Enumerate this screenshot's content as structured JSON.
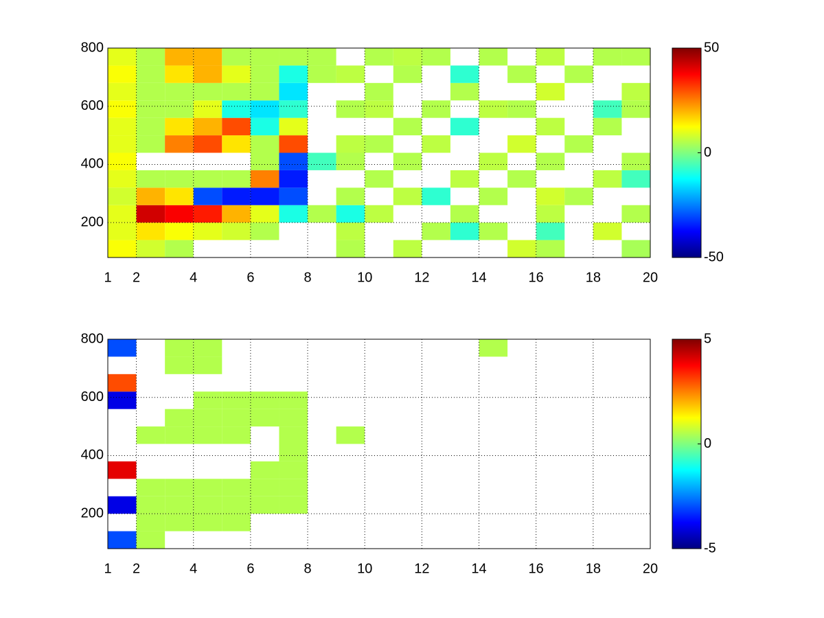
{
  "chart_data": [
    {
      "type": "heatmap",
      "colormap": "jet",
      "grid": true,
      "x": [
        1.5,
        2.5,
        3.5,
        4.5,
        5.5,
        6.5,
        7.5,
        8.5,
        9.5,
        10.5,
        11.5,
        12.5,
        13.5,
        14.5,
        15.5,
        16.5,
        17.5,
        18.5,
        19.5
      ],
      "y": [
        110,
        170,
        230,
        290,
        350,
        410,
        470,
        530,
        590,
        650,
        710,
        770
      ],
      "values": [
        [
          12,
          8,
          5,
          null,
          null,
          null,
          null,
          null,
          5,
          null,
          6,
          null,
          null,
          null,
          8,
          5,
          null,
          null,
          4
        ],
        [
          10,
          15,
          12,
          10,
          8,
          5,
          null,
          null,
          6,
          null,
          null,
          5,
          -8,
          5,
          null,
          -6,
          null,
          8,
          null
        ],
        [
          10,
          42,
          38,
          35,
          20,
          10,
          -10,
          5,
          -10,
          6,
          null,
          null,
          5,
          null,
          null,
          6,
          null,
          null,
          5
        ],
        [
          8,
          20,
          15,
          -30,
          -35,
          -35,
          -30,
          null,
          5,
          null,
          6,
          -8,
          null,
          5,
          null,
          8,
          5,
          null,
          null
        ],
        [
          10,
          5,
          5,
          5,
          5,
          25,
          -35,
          null,
          null,
          5,
          null,
          null,
          6,
          null,
          5,
          null,
          null,
          6,
          -6
        ],
        [
          12,
          null,
          null,
          null,
          null,
          5,
          -30,
          -6,
          5,
          null,
          5,
          null,
          null,
          6,
          null,
          5,
          null,
          null,
          5
        ],
        [
          10,
          5,
          25,
          30,
          15,
          5,
          30,
          null,
          6,
          5,
          null,
          6,
          null,
          null,
          8,
          null,
          5,
          null,
          null
        ],
        [
          10,
          5,
          15,
          20,
          30,
          -10,
          10,
          null,
          null,
          null,
          5,
          null,
          -8,
          null,
          null,
          6,
          null,
          5,
          null
        ],
        [
          12,
          5,
          5,
          10,
          -10,
          -15,
          -8,
          null,
          5,
          6,
          null,
          5,
          null,
          6,
          5,
          null,
          null,
          -6,
          5
        ],
        [
          10,
          5,
          5,
          5,
          5,
          5,
          -15,
          null,
          null,
          5,
          null,
          null,
          5,
          null,
          null,
          8,
          null,
          null,
          6
        ],
        [
          12,
          5,
          15,
          20,
          10,
          5,
          -10,
          5,
          6,
          null,
          5,
          null,
          -8,
          null,
          5,
          null,
          5,
          null,
          null
        ],
        [
          10,
          5,
          20,
          20,
          5,
          5,
          5,
          5,
          null,
          5,
          6,
          5,
          null,
          5,
          null,
          6,
          null,
          5,
          5
        ]
      ],
      "xlim": [
        1,
        20
      ],
      "ylim": [
        80,
        800
      ],
      "xticks": [
        1,
        2,
        4,
        6,
        8,
        10,
        12,
        14,
        16,
        18,
        20
      ],
      "yticks": [
        200,
        400,
        600,
        800
      ],
      "clim": [
        -50,
        50
      ],
      "cticks": [
        -50,
        0,
        50
      ]
    },
    {
      "type": "heatmap",
      "colormap": "jet",
      "grid": true,
      "x": [
        1.5,
        2.5,
        3.5,
        4.5,
        5.5,
        6.5,
        7.5,
        8.5,
        9.5,
        10.5,
        11.5,
        12.5,
        13.5,
        14.5,
        15.5,
        16.5,
        17.5,
        18.5,
        19.5
      ],
      "y": [
        110,
        170,
        230,
        290,
        350,
        410,
        470,
        530,
        590,
        650,
        710,
        770
      ],
      "values": [
        [
          -3,
          0.5,
          null,
          null,
          null,
          null,
          null,
          null,
          null,
          null,
          null,
          null,
          null,
          null,
          null,
          null,
          null,
          null,
          null
        ],
        [
          null,
          0.5,
          0.5,
          0.5,
          0.5,
          null,
          null,
          null,
          null,
          null,
          null,
          null,
          null,
          null,
          null,
          null,
          null,
          null,
          null
        ],
        [
          -4,
          0.5,
          0.5,
          0.5,
          0.5,
          0.5,
          0.5,
          null,
          null,
          null,
          null,
          null,
          null,
          null,
          null,
          null,
          null,
          null,
          null
        ],
        [
          null,
          0.5,
          0.5,
          0.5,
          0.5,
          0.5,
          0.5,
          null,
          null,
          null,
          null,
          null,
          null,
          null,
          null,
          null,
          null,
          null,
          null
        ],
        [
          4,
          null,
          null,
          null,
          null,
          0.5,
          0.5,
          null,
          null,
          null,
          null,
          null,
          null,
          null,
          null,
          null,
          null,
          null,
          null
        ],
        [
          null,
          null,
          null,
          null,
          null,
          null,
          0.5,
          null,
          null,
          null,
          null,
          null,
          null,
          null,
          null,
          null,
          null,
          null,
          null
        ],
        [
          null,
          0.5,
          0.5,
          0.5,
          0.5,
          null,
          0.5,
          null,
          0.5,
          null,
          null,
          null,
          null,
          null,
          null,
          null,
          null,
          null,
          null
        ],
        [
          null,
          null,
          0.5,
          0.5,
          0.5,
          0.5,
          0.5,
          null,
          null,
          null,
          null,
          null,
          null,
          null,
          null,
          null,
          null,
          null,
          null
        ],
        [
          -4,
          null,
          null,
          0.5,
          0.5,
          0.5,
          0.5,
          null,
          null,
          null,
          null,
          null,
          null,
          null,
          null,
          null,
          null,
          null,
          null
        ],
        [
          3,
          null,
          null,
          null,
          null,
          null,
          null,
          null,
          null,
          null,
          null,
          null,
          null,
          null,
          null,
          null,
          null,
          null,
          null
        ],
        [
          null,
          null,
          0.5,
          0.5,
          null,
          null,
          null,
          null,
          null,
          null,
          null,
          null,
          null,
          null,
          null,
          null,
          null,
          null,
          null
        ],
        [
          -3,
          null,
          0.5,
          0.5,
          null,
          null,
          null,
          null,
          null,
          null,
          null,
          null,
          null,
          0.5,
          null,
          null,
          null,
          null,
          null
        ]
      ],
      "xlim": [
        1,
        20
      ],
      "ylim": [
        80,
        800
      ],
      "xticks": [
        1,
        2,
        4,
        6,
        8,
        10,
        12,
        14,
        16,
        18,
        20
      ],
      "yticks": [
        200,
        400,
        600,
        800
      ],
      "clim": [
        -5,
        5
      ],
      "cticks": [
        -5,
        0,
        5
      ]
    }
  ]
}
